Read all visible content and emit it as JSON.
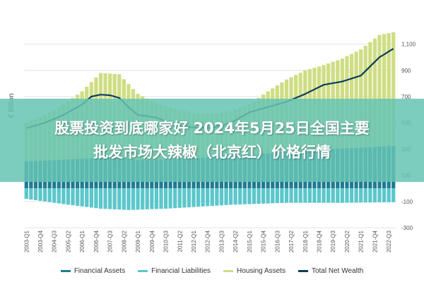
{
  "chart_data": {
    "type": "bar",
    "ylabel": "€ Billion",
    "ylim": [
      -300,
      1200
    ],
    "yticks": [
      -300,
      -100,
      100,
      300,
      500,
      700,
      900,
      1100
    ],
    "ytick_labels": [
      "-300",
      "-100",
      "100",
      "300",
      "500",
      "700",
      "900",
      "1,100"
    ],
    "grid": true,
    "legend_position": "bottom",
    "start": "2003-Q1",
    "end": "2022-Q4",
    "categories": [
      "2003-Q1",
      "2003-Q2",
      "2003-Q3",
      "2003-Q4",
      "2004-Q1",
      "2004-Q2",
      "2004-Q3",
      "2004-Q4",
      "2005-Q1",
      "2005-Q2",
      "2005-Q3",
      "2005-Q4",
      "2006-Q1",
      "2006-Q2",
      "2006-Q3",
      "2006-Q4",
      "2007-Q1",
      "2007-Q2",
      "2007-Q3",
      "2007-Q4",
      "2008-Q1",
      "2008-Q2",
      "2008-Q3",
      "2008-Q4",
      "2009-Q1",
      "2009-Q2",
      "2009-Q3",
      "2009-Q4",
      "2010-Q1",
      "2010-Q2",
      "2010-Q3",
      "2010-Q4",
      "2011-Q1",
      "2011-Q2",
      "2011-Q3",
      "2011-Q4",
      "2012-Q1",
      "2012-Q2",
      "2012-Q3",
      "2012-Q4",
      "2013-Q1",
      "2013-Q2",
      "2013-Q3",
      "2013-Q4",
      "2014-Q1",
      "2014-Q2",
      "2014-Q3",
      "2014-Q4",
      "2015-Q1",
      "2015-Q2",
      "2015-Q3",
      "2015-Q4",
      "2016-Q1",
      "2016-Q2",
      "2016-Q3",
      "2016-Q4",
      "2017-Q1",
      "2017-Q2",
      "2017-Q3",
      "2017-Q4",
      "2018-Q1",
      "2018-Q2",
      "2018-Q3",
      "2018-Q4",
      "2019-Q1",
      "2019-Q2",
      "2019-Q3",
      "2019-Q4",
      "2020-Q1",
      "2020-Q2",
      "2020-Q3",
      "2020-Q4",
      "2021-Q1",
      "2021-Q2",
      "2021-Q3",
      "2021-Q4",
      "2022-Q1",
      "2022-Q2",
      "2022-Q3",
      "2022-Q4"
    ],
    "tick_labels": [
      "2003-Q1",
      "2003-Q4",
      "2004-Q3",
      "2005-Q2",
      "2006-Q1",
      "2006-Q4",
      "2007-Q3",
      "2008-Q2",
      "2009-Q1",
      "2009-Q4",
      "2010-Q3",
      "2011-Q2",
      "2012-Q1",
      "2012-Q4",
      "2013-Q3",
      "2014-Q2",
      "2015-Q1",
      "2015-Q4",
      "2016-Q3",
      "2017-Q2",
      "2018-Q1",
      "2018-Q4",
      "2019-Q3",
      "2020-Q2",
      "2021-Q1",
      "2021-Q4",
      "2022-Q3"
    ],
    "tick_indices": [
      0,
      3,
      6,
      9,
      12,
      15,
      18,
      21,
      24,
      27,
      30,
      33,
      36,
      39,
      42,
      45,
      48,
      51,
      54,
      57,
      60,
      63,
      66,
      69,
      72,
      75,
      78
    ],
    "anchors": {
      "financial_assets": [
        [
          0,
          205
        ],
        [
          20,
          240
        ],
        [
          24,
          215
        ],
        [
          36,
          230
        ],
        [
          48,
          255
        ],
        [
          60,
          290
        ],
        [
          72,
          310
        ],
        [
          79,
          325
        ]
      ],
      "financial_liabilities": [
        [
          0,
          -80
        ],
        [
          8,
          -120
        ],
        [
          16,
          -155
        ],
        [
          22,
          -165
        ],
        [
          30,
          -155
        ],
        [
          44,
          -125
        ],
        [
          56,
          -110
        ],
        [
          68,
          -110
        ],
        [
          79,
          -105
        ]
      ],
      "housing_assets": [
        [
          0,
          500
        ],
        [
          4,
          560
        ],
        [
          8,
          640
        ],
        [
          12,
          740
        ],
        [
          16,
          880
        ],
        [
          20,
          870
        ],
        [
          24,
          720
        ],
        [
          28,
          650
        ],
        [
          32,
          610
        ],
        [
          36,
          575
        ],
        [
          40,
          570
        ],
        [
          44,
          590
        ],
        [
          48,
          640
        ],
        [
          52,
          740
        ],
        [
          56,
          830
        ],
        [
          60,
          900
        ],
        [
          64,
          940
        ],
        [
          68,
          990
        ],
        [
          72,
          1060
        ],
        [
          76,
          1170
        ],
        [
          79,
          1190
        ]
      ],
      "total_net_wealth": [
        [
          0,
          460
        ],
        [
          4,
          500
        ],
        [
          8,
          560
        ],
        [
          12,
          640
        ],
        [
          14,
          700
        ],
        [
          16,
          715
        ],
        [
          18,
          710
        ],
        [
          20,
          690
        ],
        [
          22,
          620
        ],
        [
          24,
          560
        ],
        [
          28,
          540
        ],
        [
          32,
          480
        ],
        [
          36,
          465
        ],
        [
          40,
          460
        ],
        [
          44,
          500
        ],
        [
          48,
          580
        ],
        [
          52,
          620
        ],
        [
          56,
          660
        ],
        [
          60,
          720
        ],
        [
          64,
          790
        ],
        [
          68,
          815
        ],
        [
          72,
          860
        ],
        [
          76,
          1000
        ],
        [
          79,
          1065
        ]
      ]
    },
    "series": [
      {
        "name": "Financial Assets",
        "color": "#1f7c92",
        "type": "bar"
      },
      {
        "name": "Financial Liabilities",
        "color": "#5cc7cb",
        "type": "bar"
      },
      {
        "name": "Housing Assets",
        "color": "#cfdd84",
        "type": "bar"
      },
      {
        "name": "Total Net Wealth",
        "color": "#0c3d5b",
        "type": "line"
      }
    ]
  },
  "overlay": {
    "line1": "股票投资到底哪家好 2024年5月25日全国主要",
    "line2": "批发市场大辣椒（北京红）价格行情"
  },
  "legend": [
    {
      "label": "Financial Assets",
      "color": "#1f7c92"
    },
    {
      "label": "Financial Liabilities",
      "color": "#5cc7cb"
    },
    {
      "label": "Housing Assets",
      "color": "#cfdd84"
    },
    {
      "label": "Total Net Wealth",
      "color": "#0c3d5b"
    }
  ]
}
